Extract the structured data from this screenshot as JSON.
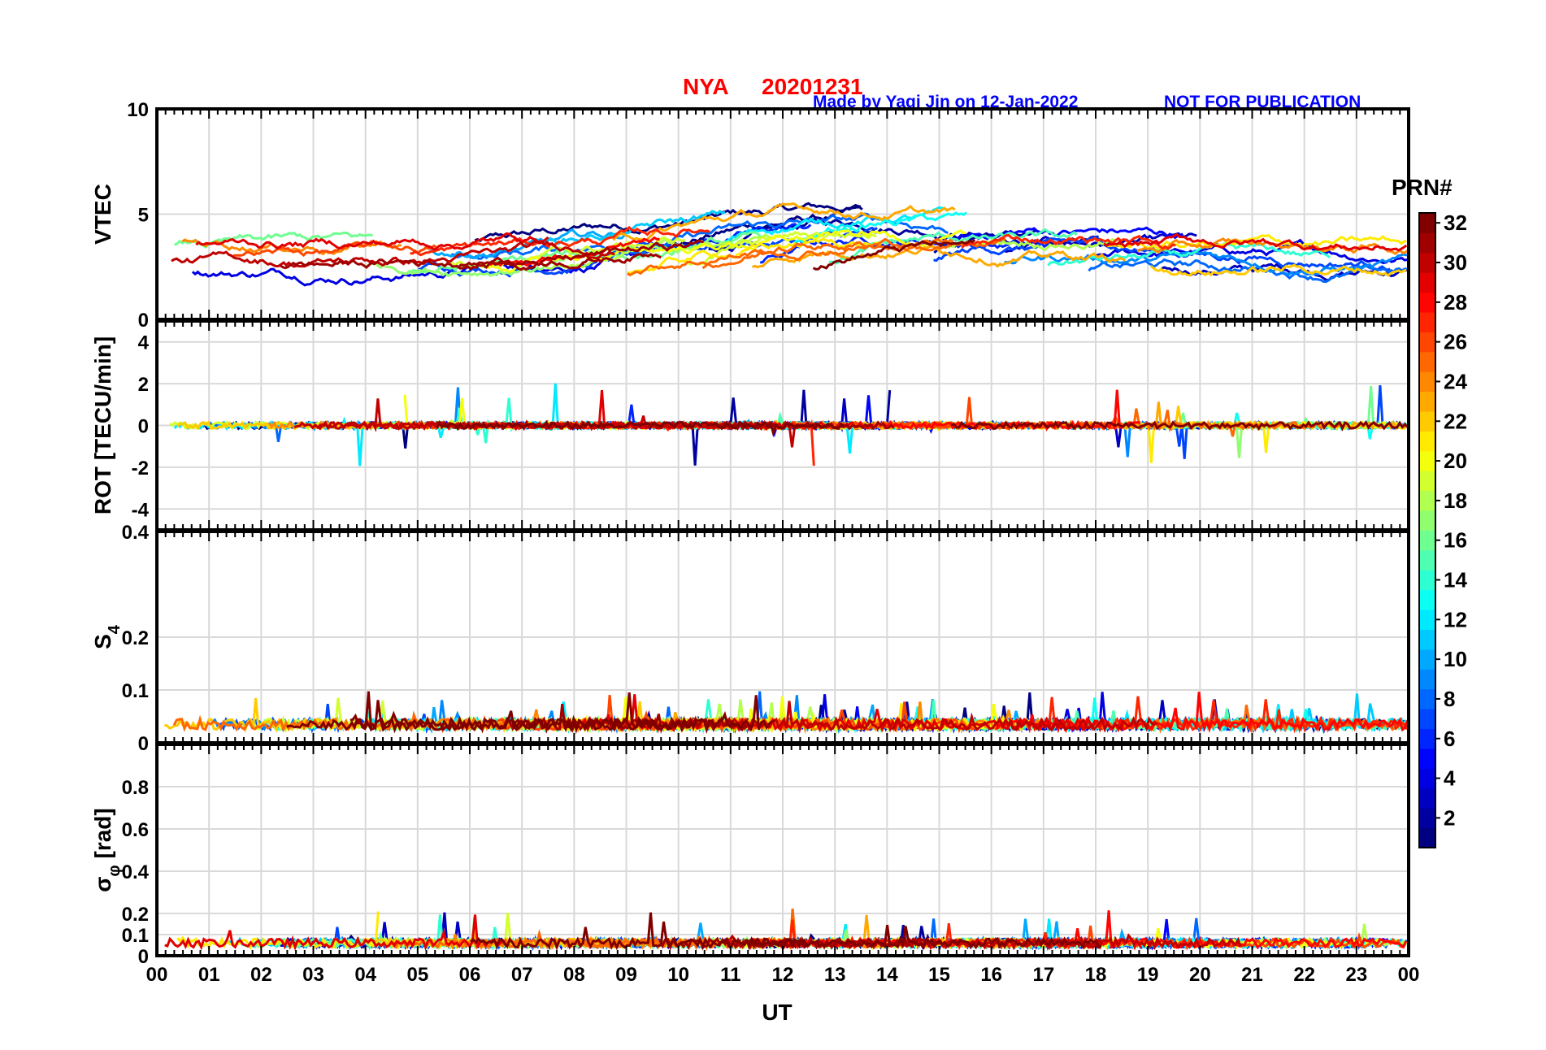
{
  "title": {
    "station": "NYA",
    "date": "20201231",
    "credit": "Made by Yaqi Jin on 12-Jan-2022",
    "notice": "NOT FOR PUBLICATION"
  },
  "colors": {
    "title": "#ff0000",
    "credit": "#0000ff",
    "grid": "#d9d9d9",
    "axis": "#000000"
  },
  "colorbar": {
    "label": "PRN#",
    "colormap": "jet",
    "range": [
      1,
      32
    ],
    "ticks": [
      "2",
      "4",
      "6",
      "8",
      "10",
      "12",
      "14",
      "16",
      "18",
      "20",
      "22",
      "24",
      "26",
      "28",
      "30",
      "32"
    ]
  },
  "chart_data": [
    {
      "type": "line",
      "panel": "VTEC",
      "ylabel": "VTEC",
      "ylim": [
        0,
        10
      ],
      "yticks": [
        "0",
        "5",
        "10"
      ],
      "grid": true,
      "series_count": 32,
      "note_values": "per-PRN VTEC traces mostly between 1.5 and 6 TECU"
    },
    {
      "type": "line",
      "panel": "ROT",
      "ylabel": "ROT [TECU/min]",
      "ylim": [
        -5,
        5
      ],
      "yticks": [
        "-4",
        "-2",
        "0",
        "2",
        "4"
      ],
      "grid": true,
      "series_count": 32
    },
    {
      "type": "line",
      "panel": "S4",
      "ylabel_main": "S",
      "ylabel_sub": "4",
      "ylim": [
        0,
        0.4
      ],
      "yticks": [
        "0",
        "0.1",
        "0.2",
        "0.4"
      ],
      "grid": true,
      "series_count": 32
    },
    {
      "type": "line",
      "panel": "sigma_phi",
      "ylabel_main": "σ",
      "ylabel_sub": "φ",
      "ylabel_unit": "[rad]",
      "ylim": [
        0,
        1
      ],
      "yticks": [
        "0",
        "0.1",
        "0.2",
        "0.4",
        "0.6",
        "0.8"
      ],
      "grid": true,
      "series_count": 32
    }
  ],
  "xaxis": {
    "label": "UT",
    "range": [
      0,
      24
    ],
    "ticks": [
      "00",
      "01",
      "02",
      "03",
      "04",
      "05",
      "06",
      "07",
      "08",
      "09",
      "10",
      "11",
      "12",
      "13",
      "14",
      "15",
      "16",
      "17",
      "18",
      "19",
      "20",
      "21",
      "22",
      "23",
      "00"
    ]
  }
}
